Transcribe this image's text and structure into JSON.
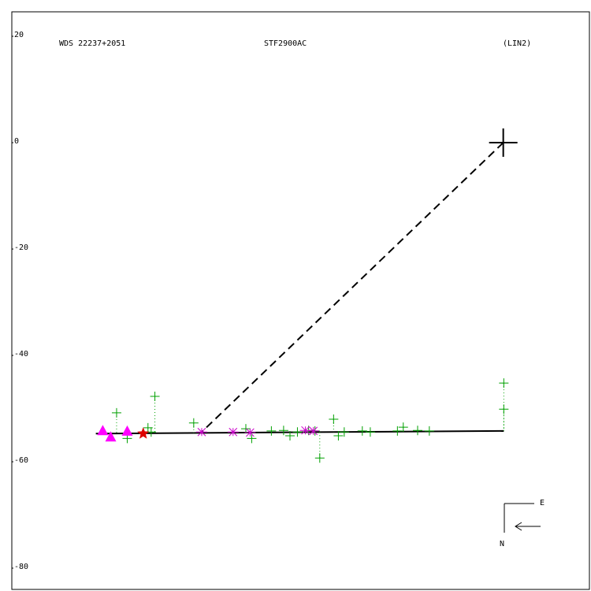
{
  "chart_data": {
    "type": "scatter",
    "texts": [
      "WDS 22237+2051",
      "STF2900AC",
      "(LIN2)"
    ],
    "compass": [
      "E",
      "N"
    ],
    "xlim": [
      -92.4,
      16.2
    ],
    "ylim": [
      -84,
      24.6
    ],
    "yticks": [
      20,
      0,
      -20,
      -40,
      -60,
      -80
    ],
    "series": [
      {
        "marker": "line",
        "dash": true,
        "color": "#000000",
        "x": [
          0,
          -56.7
        ],
        "y": [
          0,
          -54.4
        ]
      },
      {
        "marker": "line",
        "dash": false,
        "color": "#000000",
        "x": [
          -76.6,
          0.1
        ],
        "y": [
          -54.7,
          -54.2
        ]
      },
      {
        "marker": "plus",
        "residual": true,
        "color": "#00a000",
        "x": [
          -72.7,
          -70.7,
          -66.8,
          -65.5,
          -66.2,
          -58.2,
          -48.4,
          -47.3,
          -43.6,
          -41.3,
          -40.1,
          -38.7,
          -36.6,
          -35.4,
          -31.9,
          -34.5,
          -31.0,
          -29.9,
          -26.5,
          -25.0,
          -19.9,
          -18.8,
          -16.1,
          -13.9,
          0.1,
          0.1
        ],
        "y": [
          -50.8,
          -55.6,
          -53.6,
          -47.7,
          -54.4,
          -52.7,
          -53.8,
          -55.6,
          -54.2,
          -54.1,
          -55.1,
          -54.4,
          -54.1,
          -54.2,
          -52.0,
          -59.3,
          -55.1,
          -54.4,
          -54.2,
          -54.4,
          -54.2,
          -53.5,
          -54.1,
          -54.2,
          -45.2,
          -50.1
        ]
      },
      {
        "marker": "triangle",
        "color": "#ff00ff",
        "x": [
          -75.3,
          -73.8,
          -70.7
        ],
        "y": [
          -54.1,
          -55.3,
          -54.2
        ]
      },
      {
        "marker": "asterisk",
        "color": "#cc00cc",
        "x": [
          -56.7,
          -50.8,
          -47.6,
          -37.2,
          -35.7
        ],
        "y": [
          -54.4,
          -54.4,
          -54.5,
          -54.1,
          -54.2
        ]
      },
      {
        "marker": "star",
        "color": "#dd0000",
        "x": [
          -67.7
        ],
        "y": [
          -54.7
        ]
      },
      {
        "marker": "bigplus",
        "color": "#000000",
        "x": [
          0
        ],
        "y": [
          0
        ]
      }
    ]
  }
}
